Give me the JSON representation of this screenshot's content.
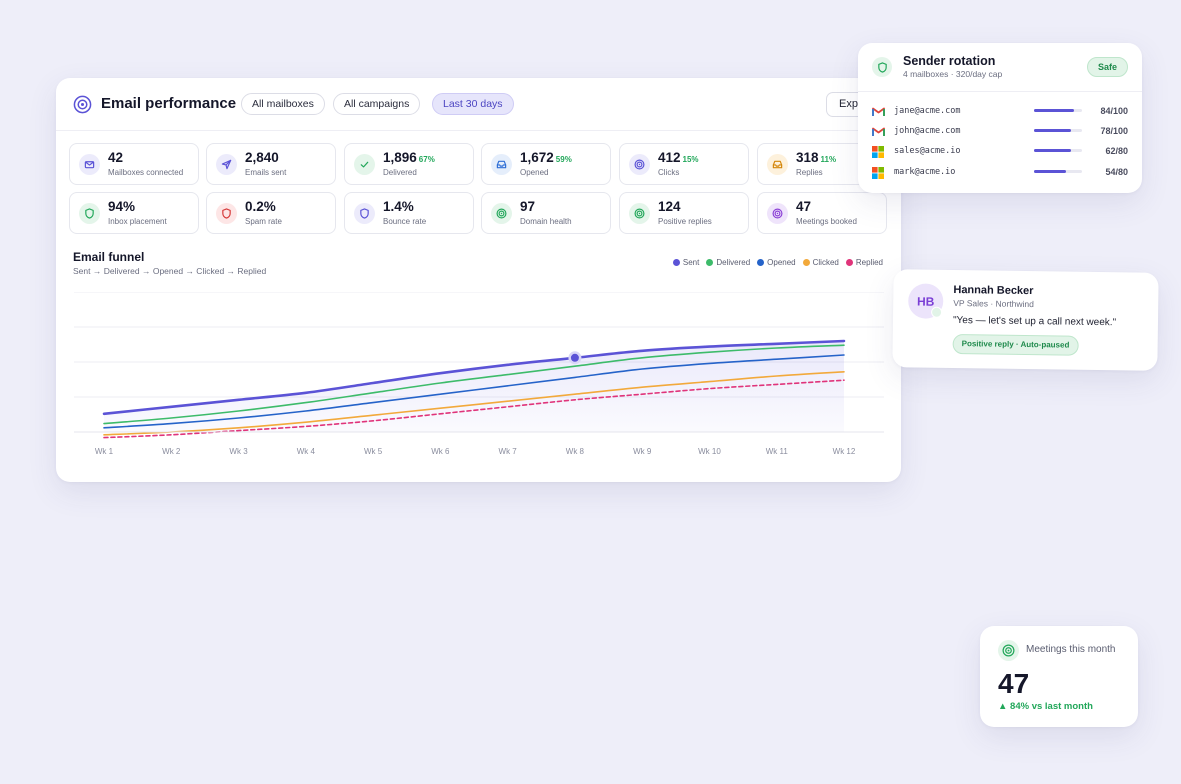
{
  "header": {
    "title": "Email performance",
    "filters": [
      "All mailboxes",
      "All campaigns",
      "Last 30 days"
    ],
    "export_label": "Export"
  },
  "stats": [
    {
      "value": "42",
      "pct": "",
      "label": "Mailboxes connected",
      "icon": "mail-icon",
      "bg": "#ecebfb",
      "fg": "#5b53d6"
    },
    {
      "value": "2,840",
      "pct": "",
      "label": "Emails sent",
      "icon": "send-icon",
      "bg": "#ecebfb",
      "fg": "#5b53d6"
    },
    {
      "value": "1,896",
      "pct": "67%",
      "label": "Delivered",
      "icon": "check-icon",
      "bg": "#e4f5ea",
      "fg": "#22a75a"
    },
    {
      "value": "1,672",
      "pct": "59%",
      "label": "Opened",
      "icon": "inbox-icon",
      "bg": "#e5eefb",
      "fg": "#2f6fd6"
    },
    {
      "value": "412",
      "pct": "15%",
      "label": "Clicks",
      "icon": "target-icon",
      "bg": "#ecebfb",
      "fg": "#5b53d6"
    },
    {
      "value": "318",
      "pct": "11%",
      "label": "Replies",
      "icon": "inbox-icon",
      "bg": "#fdf1dc",
      "fg": "#d4860b"
    },
    {
      "value": "94%",
      "pct": "",
      "label": "Inbox placement",
      "icon": "shield-icon",
      "bg": "#e4f5ea",
      "fg": "#22a75a"
    },
    {
      "value": "0.2%",
      "pct": "",
      "label": "Spam rate",
      "icon": "shield-icon",
      "bg": "#fde6e6",
      "fg": "#d63a3a"
    },
    {
      "value": "1.4%",
      "pct": "",
      "label": "Bounce rate",
      "icon": "shield-icon",
      "bg": "#ecebfb",
      "fg": "#5b53d6"
    },
    {
      "value": "97",
      "pct": "",
      "label": "Domain health",
      "icon": "target-icon",
      "bg": "#e4f5ea",
      "fg": "#22a75a"
    },
    {
      "value": "124",
      "pct": "",
      "label": "Positive replies",
      "icon": "target-icon",
      "bg": "#e4f5ea",
      "fg": "#22a75a"
    },
    {
      "value": "47",
      "pct": "",
      "label": "Meetings booked",
      "icon": "target-icon",
      "bg": "#efe4fb",
      "fg": "#8b3fd6"
    }
  ],
  "funnel": {
    "title": "Email funnel",
    "subtitle": "Sent → Delivered → Opened → Clicked → Replied"
  },
  "chart_data": {
    "type": "line",
    "x": [
      "Wk 1",
      "Wk 2",
      "Wk 3",
      "Wk 4",
      "Wk 5",
      "Wk 6",
      "Wk 7",
      "Wk 8",
      "Wk 9",
      "Wk 10",
      "Wk 11",
      "Wk 12"
    ],
    "ylim": [
      0,
      100
    ],
    "grid": true,
    "legend_position": "top-right",
    "highlight_index": 7,
    "series": [
      {
        "name": "Sent",
        "color": "#5b53d6",
        "style": "solid",
        "fill": true,
        "values": [
          13,
          18,
          23,
          28,
          35,
          42,
          48,
          53,
          58,
          61,
          63,
          65
        ]
      },
      {
        "name": "Delivered",
        "color": "#3dbb6a",
        "style": "solid",
        "values": [
          6,
          10,
          15,
          21,
          28,
          35,
          41,
          47,
          53,
          57,
          60,
          62
        ]
      },
      {
        "name": "Opened",
        "color": "#2563c9",
        "style": "solid",
        "values": [
          3,
          6,
          10,
          15,
          21,
          27,
          33,
          39,
          45,
          49,
          52,
          55
        ]
      },
      {
        "name": "Clicked",
        "color": "#f2a93b",
        "style": "solid",
        "values": [
          -2,
          0,
          3,
          7,
          12,
          17,
          22,
          27,
          32,
          36,
          40,
          43
        ]
      },
      {
        "name": "Replied",
        "color": "#e0347a",
        "style": "dashed",
        "values": [
          -4,
          -2,
          1,
          4,
          8,
          13,
          18,
          23,
          27,
          31,
          34,
          37
        ]
      }
    ]
  },
  "sender": {
    "title": "Sender rotation",
    "subtitle": "4 mailboxes · 320/day cap",
    "status": "Safe",
    "mailboxes": [
      {
        "email": "jane@acme.com",
        "provider": "gmail-icon",
        "score": "84/100",
        "fraction": 0.84
      },
      {
        "email": "john@acme.com",
        "provider": "gmail-icon",
        "score": "78/100",
        "fraction": 0.78
      },
      {
        "email": "sales@acme.io",
        "provider": "microsoft-icon",
        "score": "62/80",
        "fraction": 0.775
      },
      {
        "email": "mark@acme.io",
        "provider": "microsoft-icon",
        "score": "54/80",
        "fraction": 0.675
      }
    ]
  },
  "reply": {
    "initials": "HB",
    "name": "Hannah Becker",
    "role": "VP Sales · Northwind",
    "quote": "\"Yes — let's set up a call next week.\"",
    "tag": "Positive reply · Auto-paused"
  },
  "meetings": {
    "label": "Meetings this month",
    "value": "47",
    "delta": "▲ 84% vs last month"
  }
}
